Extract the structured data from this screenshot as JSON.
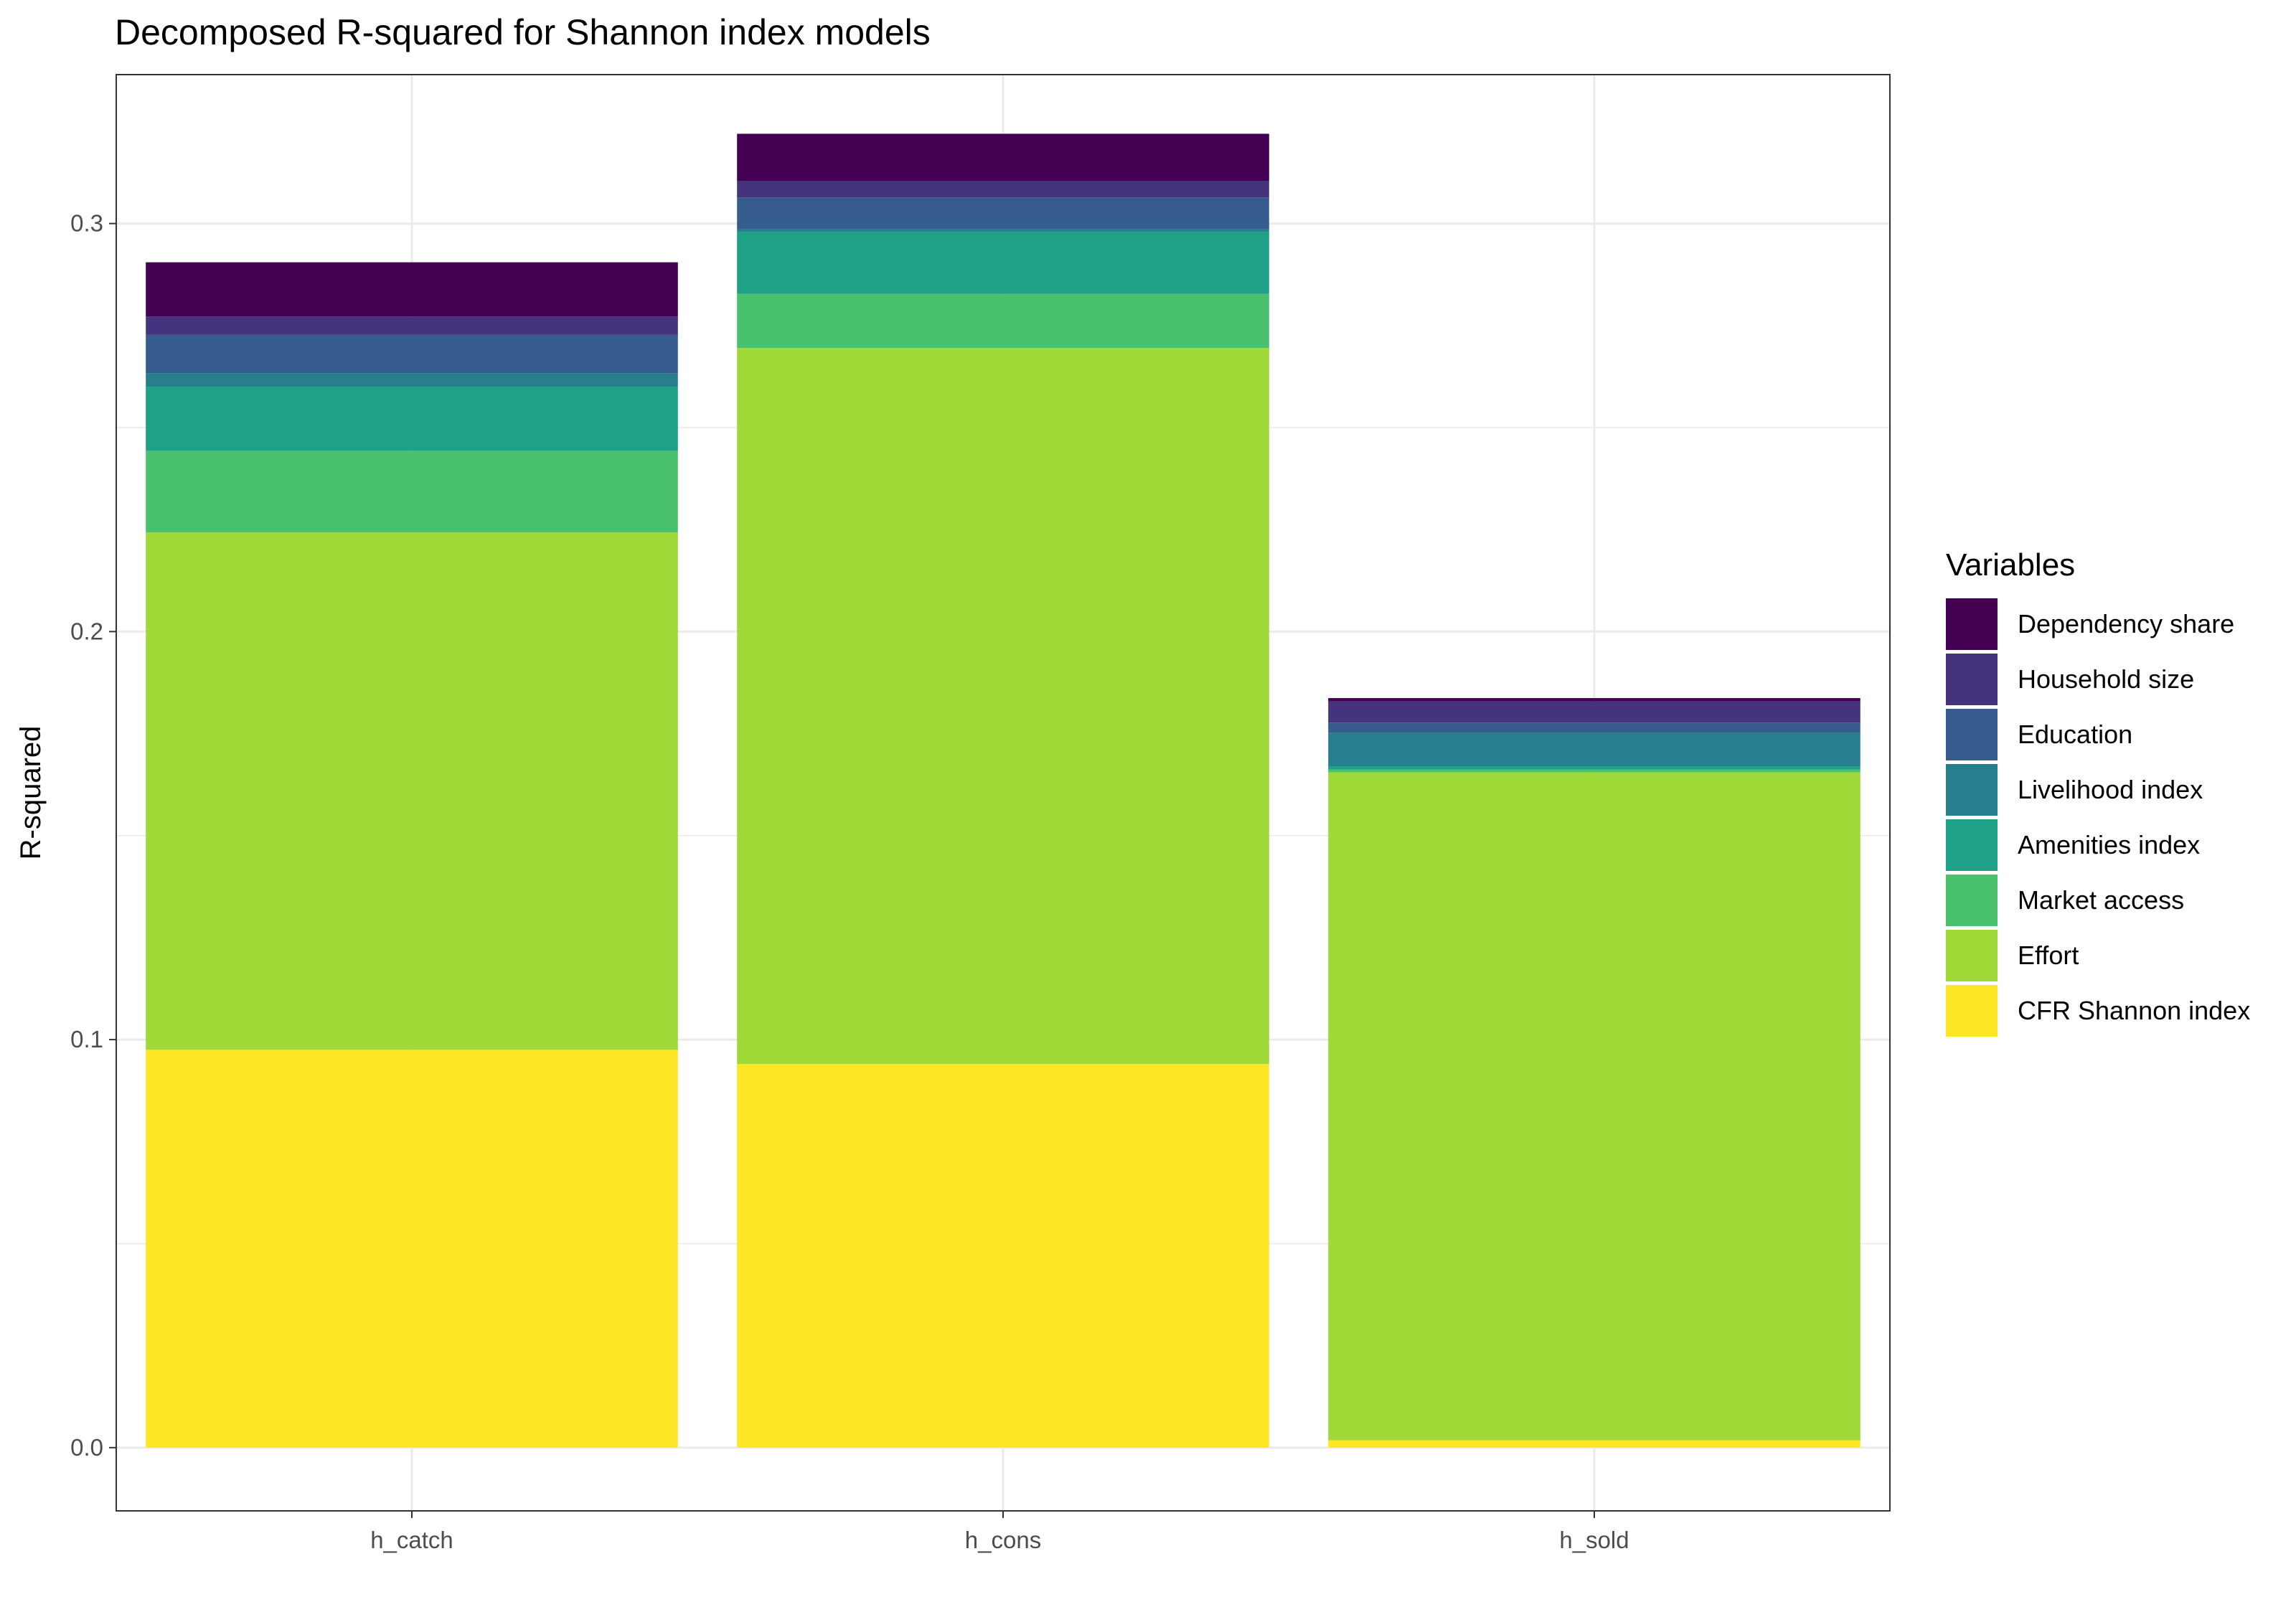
{
  "chart_data": {
    "type": "bar",
    "stacked": true,
    "title": "Decomposed R-squared for Shannon index models",
    "xlabel": "",
    "ylabel": "R-squared",
    "categories": [
      "h_catch",
      "h_cons",
      "h_sold"
    ],
    "ylim": [
      -0.0155,
      0.3365
    ],
    "yticks": [
      0.0,
      0.1,
      0.2,
      0.3
    ],
    "ytick_labels": [
      "0.0",
      "0.1",
      "0.2",
      "0.3"
    ],
    "grid": true,
    "legend": {
      "title": "Variables",
      "position": "right"
    },
    "series": [
      {
        "name": "CFR Shannon index",
        "color": "#FDE725",
        "values": [
          0.0975,
          0.094,
          0.0018
        ]
      },
      {
        "name": "Effort",
        "color": "#A0DA39",
        "values": [
          0.1268,
          0.1755,
          0.1637
        ]
      },
      {
        "name": "Market access",
        "color": "#4AC16D",
        "values": [
          0.02,
          0.0133,
          0.0007
        ]
      },
      {
        "name": "Amenities index",
        "color": "#1FA187",
        "values": [
          0.0157,
          0.0152,
          0.0008
        ]
      },
      {
        "name": "Livelihood index",
        "color": "#277F8E",
        "values": [
          0.0033,
          0.0007,
          0.0082
        ]
      },
      {
        "name": "Education",
        "color": "#365C8D",
        "values": [
          0.0094,
          0.0077,
          0.0025
        ]
      },
      {
        "name": "Household size",
        "color": "#46337E",
        "values": [
          0.0045,
          0.004,
          0.0052
        ]
      },
      {
        "name": "Dependency share",
        "color": "#440154",
        "values": [
          0.0133,
          0.0116,
          0.0008
        ]
      }
    ]
  }
}
